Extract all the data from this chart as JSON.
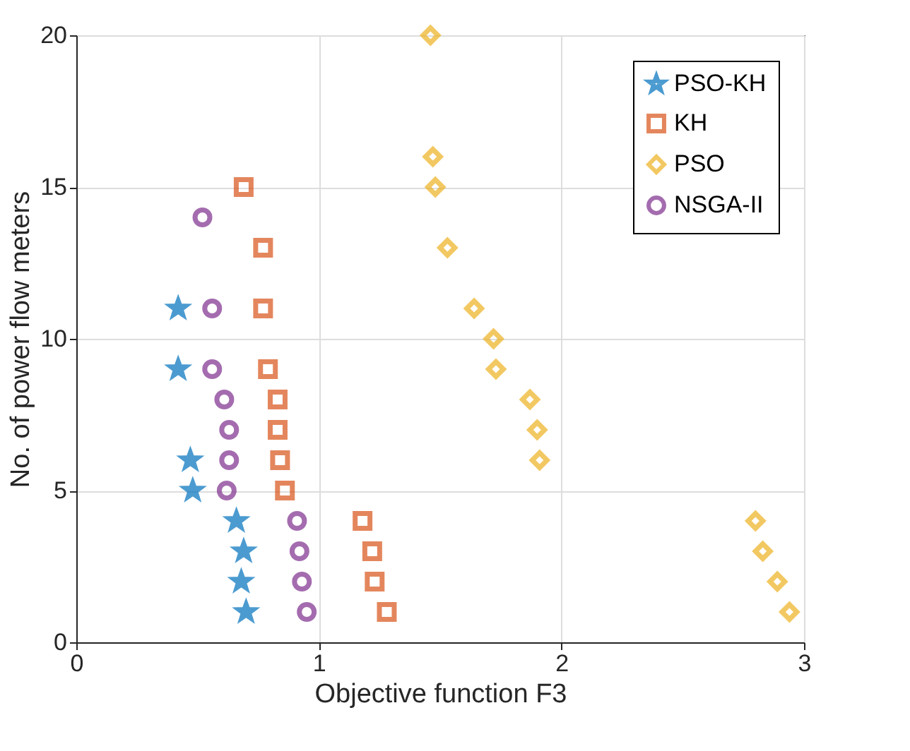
{
  "chart_data": {
    "type": "scatter",
    "xlabel": "Objective function F3",
    "ylabel": "No. of power flow meters",
    "xlim": [
      0,
      3
    ],
    "xticks": [
      0,
      1,
      2,
      3
    ],
    "ylim": [
      0,
      20
    ],
    "yticks": [
      0,
      5,
      10,
      15,
      20
    ],
    "grid": true,
    "legend": "top right",
    "series": [
      {
        "name": "PSO-KH",
        "color": "#0072bd",
        "marker": "star",
        "x": [
          0.42,
          0.42,
          0.47,
          0.48,
          0.66,
          0.69,
          0.68,
          0.7
        ],
        "values": [
          11,
          9,
          6,
          5,
          4,
          3,
          2,
          1
        ]
      },
      {
        "name": "KH",
        "color": "#d95319",
        "marker": "square",
        "x": [
          0.69,
          0.77,
          0.77,
          0.79,
          0.83,
          0.83,
          0.84,
          0.86,
          1.18,
          1.22,
          1.23,
          1.28
        ],
        "values": [
          15,
          13,
          11,
          9,
          8,
          7,
          6,
          5,
          4,
          3,
          2,
          1
        ]
      },
      {
        "name": "PSO",
        "color": "#edb120",
        "marker": "diamond",
        "x": [
          1.46,
          1.47,
          1.48,
          1.53,
          1.64,
          1.72,
          1.73,
          1.87,
          1.9,
          1.91,
          2.8,
          2.83,
          2.89,
          2.94
        ],
        "values": [
          20,
          16,
          15,
          13,
          11,
          10,
          9,
          8,
          7,
          6,
          4,
          3,
          2,
          1
        ]
      },
      {
        "name": "NSGA-II",
        "color": "#7e2f8e",
        "marker": "circle",
        "x": [
          0.52,
          0.56,
          0.56,
          0.61,
          0.63,
          0.63,
          0.62,
          0.91,
          0.92,
          0.93,
          0.95
        ],
        "values": [
          14,
          11,
          9,
          8,
          7,
          6,
          5,
          4,
          3,
          2,
          1
        ]
      }
    ]
  }
}
